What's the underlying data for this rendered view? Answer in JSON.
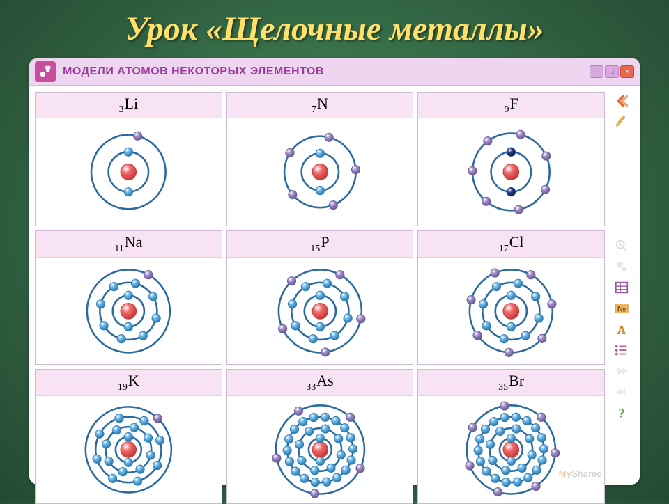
{
  "title": "Урок «Щелочные металлы»",
  "panel": {
    "header_title": "МОДЕЛИ АТОМОВ НЕКОТОРЫХ ЭЛЕМЕНТОВ",
    "header_bg": "#eed5f0",
    "header_color": "#9a3d9a",
    "logo_bg": "#c94f9e"
  },
  "colors": {
    "orbit": "#2a6aa0",
    "nucleus_fill": "#f06a6a",
    "nucleus_stroke": "#c83a3a",
    "electron_inner_fill": "#6bb6e6",
    "electron_inner_stroke": "#2a7ab0",
    "electron_outer_fill": "#a090c8",
    "electron_outer_stroke": "#6a5a9a",
    "electron_dark_fill": "#2a3a8a",
    "electron_dark_stroke": "#15205a",
    "cell_border": "#cdb9d6",
    "cell_label_bg": "#f7e3f3"
  },
  "atom_style": {
    "orbit_stroke_width": 2.5,
    "nucleus_radius": 11,
    "electron_radius": 6
  },
  "elements": [
    {
      "sub": "3",
      "sym": "Li",
      "shells": [
        2,
        1
      ],
      "radii": [
        28,
        52
      ],
      "outer_dark": false
    },
    {
      "sub": "7",
      "sym": "N",
      "shells": [
        2,
        5
      ],
      "radii": [
        26,
        50
      ],
      "outer_dark": false
    },
    {
      "sub": "9",
      "sym": "F",
      "shells": [
        2,
        7
      ],
      "radii": [
        28,
        54
      ],
      "outer_dark": true
    },
    {
      "sub": "11",
      "sym": "Na",
      "shells": [
        2,
        8,
        1
      ],
      "radii": [
        22,
        40,
        58
      ],
      "outer_dark": false
    },
    {
      "sub": "15",
      "sym": "P",
      "shells": [
        2,
        8,
        5
      ],
      "radii": [
        22,
        40,
        58
      ],
      "outer_dark": false
    },
    {
      "sub": "17",
      "sym": "Cl",
      "shells": [
        2,
        8,
        7
      ],
      "radii": [
        22,
        40,
        58
      ],
      "outer_dark": false
    },
    {
      "sub": "19",
      "sym": "K",
      "shells": [
        2,
        8,
        8,
        1
      ],
      "radii": [
        18,
        32,
        46,
        60
      ],
      "outer_dark": false
    },
    {
      "sub": "33",
      "sym": "As",
      "shells": [
        2,
        8,
        18,
        5
      ],
      "radii": [
        16,
        30,
        46,
        62
      ],
      "outer_dark": false
    },
    {
      "sub": "35",
      "sym": "Br",
      "shells": [
        2,
        8,
        18,
        7
      ],
      "radii": [
        16,
        30,
        46,
        62
      ],
      "outer_dark": false
    }
  ],
  "sidebar_icons": {
    "back": "back-icon",
    "edit": "pencil-icon",
    "zoom": "zoom-icon",
    "settings": "gears-icon",
    "table": "table-icon",
    "number": "number-icon",
    "text": "text-icon",
    "list": "list-icon",
    "fwd": "forward-icon",
    "prev": "prev-icon",
    "help": "help-icon"
  },
  "watermark": "MyShared"
}
